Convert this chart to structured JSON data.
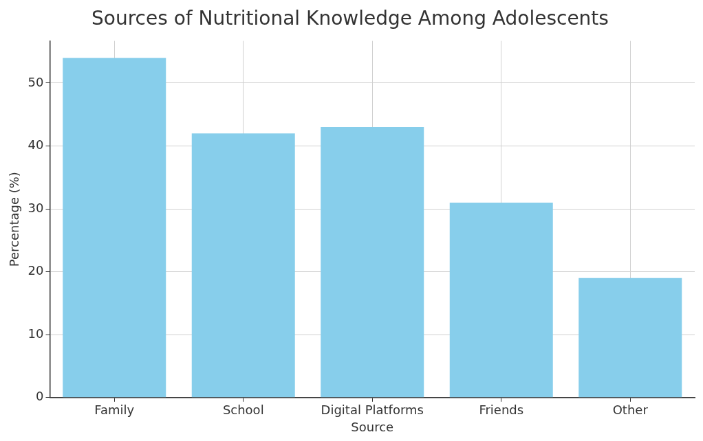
{
  "chart_data": {
    "type": "bar",
    "title": "Sources of Nutritional Knowledge Among Adolescents",
    "xlabel": "Source",
    "ylabel": "Percentage (%)",
    "categories": [
      "Family",
      "School",
      "Digital Platforms",
      "Friends",
      "Other"
    ],
    "values": [
      54,
      42,
      43,
      31,
      19
    ],
    "color": "#87ceeb",
    "ylim": [
      0,
      56.7
    ],
    "yticks": [
      0,
      10,
      20,
      30,
      40,
      50
    ],
    "grid": true
  }
}
